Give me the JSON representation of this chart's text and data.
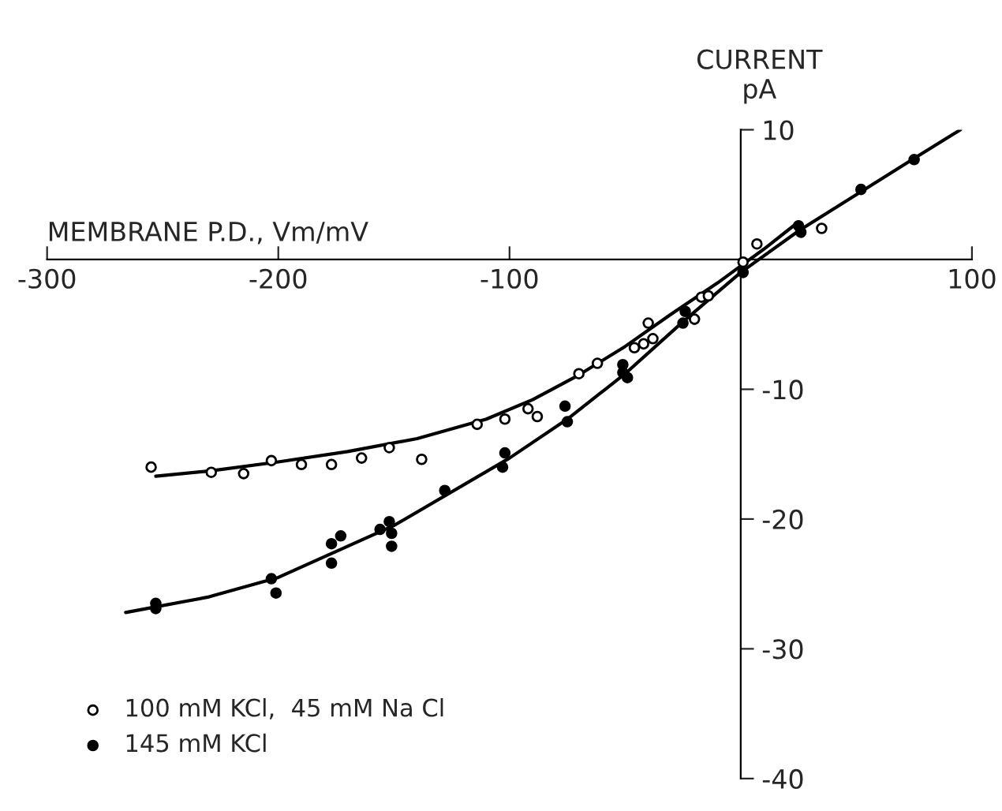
{
  "chart_data": {
    "type": "scatter",
    "xlabel": "MEMBRANE P.D., Vm/mV",
    "ylabel": "CURRENT\npA",
    "xlim": [
      -300,
      100
    ],
    "ylim": [
      -40,
      10
    ],
    "xticks": [
      -300,
      -200,
      -100,
      100
    ],
    "yticks": [
      10,
      -10,
      -20,
      -30,
      -40
    ],
    "legend": "bottom left",
    "grid": false,
    "series": [
      {
        "name": "100 mM KCl,  45 mM Na Cl",
        "marker": "circle",
        "color": "#ffffff",
        "x": [
          -255,
          -229,
          -215,
          -203,
          -190,
          -177,
          -164,
          -152,
          -138,
          -114,
          -102,
          -88,
          -92,
          -70,
          -62,
          -46,
          -42,
          -38,
          -40,
          -20,
          -17,
          -14,
          1,
          7,
          35
        ],
        "values": [
          -16.0,
          -16.4,
          -16.5,
          -15.5,
          -15.8,
          -15.8,
          -15.3,
          -14.5,
          -15.4,
          -12.7,
          -12.3,
          -12.1,
          -11.5,
          -8.8,
          -8.0,
          -6.8,
          -6.5,
          -6.1,
          -4.9,
          -4.6,
          -2.9,
          -2.8,
          -0.2,
          1.2,
          2.4
        ]
      },
      {
        "name": "145 mM KCl",
        "marker": "circle",
        "color": "#000000",
        "x": [
          -253,
          -253,
          -203,
          -201,
          -177,
          -177,
          -173,
          -156,
          -152,
          -151,
          -151,
          -128,
          -76,
          -75,
          -102,
          -103,
          -51,
          -49,
          -51,
          -24,
          -25,
          1,
          25,
          26,
          52,
          75
        ],
        "values": [
          -26.9,
          -26.5,
          -24.6,
          -25.7,
          -23.4,
          -21.9,
          -21.3,
          -20.8,
          -20.2,
          -21.1,
          -22.1,
          -17.8,
          -11.3,
          -12.5,
          -14.9,
          -16.0,
          -8.1,
          -9.1,
          -8.7,
          -4.0,
          -4.9,
          -1.0,
          2.6,
          2.1,
          5.4,
          7.7
        ]
      },
      {
        "type": "line",
        "color": "#000000",
        "line_style": "solid",
        "x": [
          -253,
          -230,
          -200,
          -170,
          -140,
          -110,
          -90,
          -70,
          -50,
          -30,
          -10,
          0,
          10,
          25
        ],
        "values": [
          -16.7,
          -16.3,
          -15.6,
          -14.8,
          -13.8,
          -12.3,
          -10.8,
          -8.9,
          -6.7,
          -4.2,
          -1.8,
          -0.5,
          0.8,
          2.9
        ]
      },
      {
        "type": "line",
        "color": "#000000",
        "line_style": "solid",
        "x": [
          -266,
          -230,
          -200,
          -150,
          -100,
          -75,
          -50,
          -25,
          0,
          25,
          50,
          75,
          95
        ],
        "values": [
          -27.2,
          -26.0,
          -24.5,
          -20.5,
          -15.3,
          -12.3,
          -8.8,
          -4.8,
          -1.0,
          2.2,
          5.0,
          7.8,
          10.0
        ]
      }
    ]
  }
}
